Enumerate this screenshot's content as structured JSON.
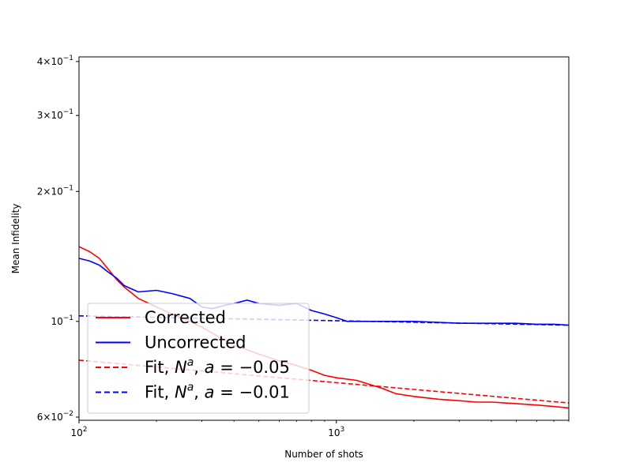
{
  "chart_data": {
    "type": "line",
    "title": "",
    "xlabel": "Number of shots",
    "ylabel": "Mean Infidelity",
    "xscale": "log",
    "yscale": "log",
    "xlim": [
      100,
      8000
    ],
    "ylim": [
      0.059,
      0.41
    ],
    "grid": false,
    "legend_position": "lower-left",
    "x_ticks": [
      {
        "value": 100,
        "base": "10",
        "exp": "2"
      },
      {
        "value": 1000,
        "base": "10",
        "exp": "3"
      }
    ],
    "y_ticks": [
      {
        "value": 0.06,
        "mant": "6",
        "exp": "−2"
      },
      {
        "value": 0.1,
        "mant": "",
        "exp": "−1"
      },
      {
        "value": 0.2,
        "mant": "2",
        "exp": "−1"
      },
      {
        "value": 0.3,
        "mant": "3",
        "exp": "−1"
      },
      {
        "value": 0.4,
        "mant": "4",
        "exp": "−1"
      }
    ],
    "series": [
      {
        "name": "Corrected",
        "color": "#ff0000",
        "style": "solid",
        "x": [
          100,
          110,
          120,
          130,
          140,
          150,
          170,
          200,
          230,
          270,
          300,
          350,
          400,
          450,
          500,
          600,
          700,
          800,
          900,
          1000,
          1200,
          1500,
          1700,
          2000,
          2500,
          3000,
          3500,
          4000,
          5000,
          6000,
          7000,
          8000
        ],
        "y": [
          0.149,
          0.145,
          0.14,
          0.132,
          0.125,
          0.12,
          0.113,
          0.108,
          0.104,
          0.1,
          0.097,
          0.092,
          0.088,
          0.086,
          0.084,
          0.081,
          0.079,
          0.077,
          0.075,
          0.074,
          0.073,
          0.07,
          0.068,
          0.067,
          0.066,
          0.0655,
          0.065,
          0.065,
          0.0645,
          0.064,
          0.0635,
          0.063
        ]
      },
      {
        "name": "Uncorrected",
        "color": "#0000ff",
        "style": "solid",
        "x": [
          100,
          110,
          120,
          130,
          140,
          150,
          170,
          200,
          230,
          270,
          300,
          330,
          370,
          400,
          450,
          500,
          600,
          700,
          800,
          900,
          1000,
          1100,
          1300,
          1500,
          2000,
          2500,
          3000,
          4000,
          5000,
          6000,
          7000,
          8000
        ],
        "y": [
          0.14,
          0.138,
          0.135,
          0.13,
          0.126,
          0.121,
          0.117,
          0.118,
          0.116,
          0.113,
          0.108,
          0.107,
          0.109,
          0.11,
          0.112,
          0.11,
          0.109,
          0.11,
          0.106,
          0.104,
          0.102,
          0.1,
          0.1,
          0.1,
          0.1,
          0.0995,
          0.099,
          0.099,
          0.099,
          0.0985,
          0.0985,
          0.098
        ]
      },
      {
        "name": "Fit, N^a, a = −0.05",
        "color": "#ff0000",
        "style": "dashed",
        "x": [
          100,
          8000
        ],
        "y": [
          0.0813,
          0.0647
        ]
      },
      {
        "name": "Fit, N^a, a = −0.01",
        "color": "#0000ff",
        "style": "dashed",
        "x": [
          100,
          8000
        ],
        "y": [
          0.103,
          0.098
        ]
      }
    ],
    "legend": [
      {
        "base": "Corrected",
        "color": "#ff0000",
        "style": "solid"
      },
      {
        "base": "Uncorrected",
        "color": "#0000ff",
        "style": "solid"
      },
      {
        "base": "Fit, ",
        "var": "N",
        "sup": "a",
        "mid": ", ",
        "avar": "a",
        "eq": " = −0.05",
        "color": "#ff0000",
        "style": "dashed"
      },
      {
        "base": "Fit, ",
        "var": "N",
        "sup": "a",
        "mid": ", ",
        "avar": "a",
        "eq": " = −0.01",
        "color": "#0000ff",
        "style": "dashed"
      }
    ]
  }
}
